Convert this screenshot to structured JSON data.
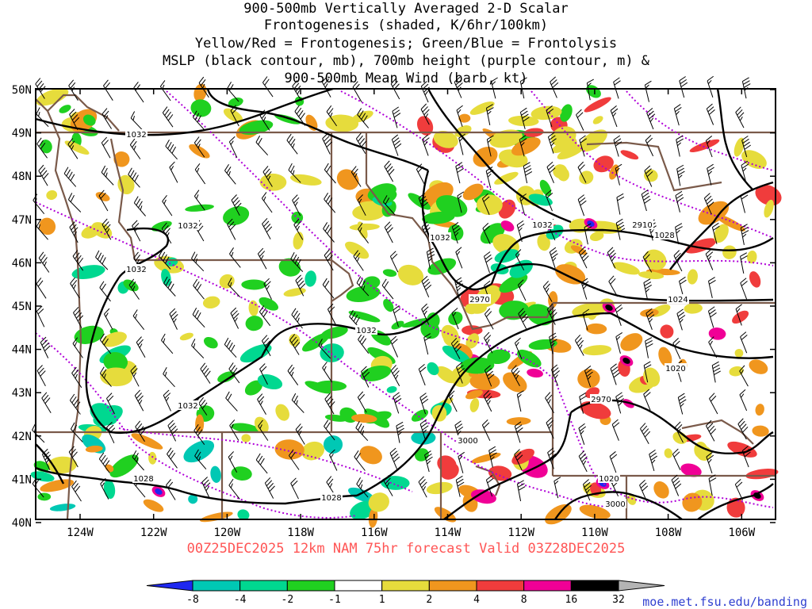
{
  "title": {
    "line1": "900-500mb Vertically Averaged 2-D Scalar",
    "line2": "Frontogenesis (shaded, K/6hr/100km)",
    "line3": "Yellow/Red = Frontogenesis;  Green/Blue = Frontolysis",
    "line4": "MSLP (black contour, mb), 700mb height (purple contour, m) &",
    "line5": "900-500mb Mean Wind (barb, kt)"
  },
  "forecast_label": "00Z25DEC2025 12km NAM 75hr forecast Valid 03Z28DEC2025",
  "url": "moe.met.fsu.edu/banding",
  "map": {
    "lat_ticks": [
      "50N",
      "49N",
      "48N",
      "47N",
      "46N",
      "45N",
      "44N",
      "43N",
      "42N",
      "41N",
      "40N"
    ],
    "lon_ticks": [
      "124W",
      "122W",
      "120W",
      "118W",
      "116W",
      "114W",
      "112W",
      "110W",
      "108W",
      "106W"
    ],
    "mslp_labels": [
      "1032",
      "1032",
      "1032",
      "1032",
      "1032",
      "1032",
      "1032",
      "1028",
      "1028",
      "1028",
      "1024",
      "1020",
      "1020"
    ],
    "height_labels": [
      "2910",
      "2970",
      "2970",
      "3000",
      "3000"
    ],
    "colors": {
      "mslp": "#000000",
      "height": "#b000d8",
      "borders": "#7a5a4a"
    }
  },
  "colorbar": {
    "labels": [
      "-8",
      "-4",
      "-2",
      "-1",
      "1",
      "2",
      "4",
      "8",
      "16",
      "32"
    ],
    "colors": [
      "#1e28f0",
      "#00c8b4",
      "#00d890",
      "#20d020",
      "#ffffff",
      "#e6dc3c",
      "#f0961e",
      "#f03c3c",
      "#f00096",
      "#000000",
      "#b4b4b4"
    ]
  }
}
